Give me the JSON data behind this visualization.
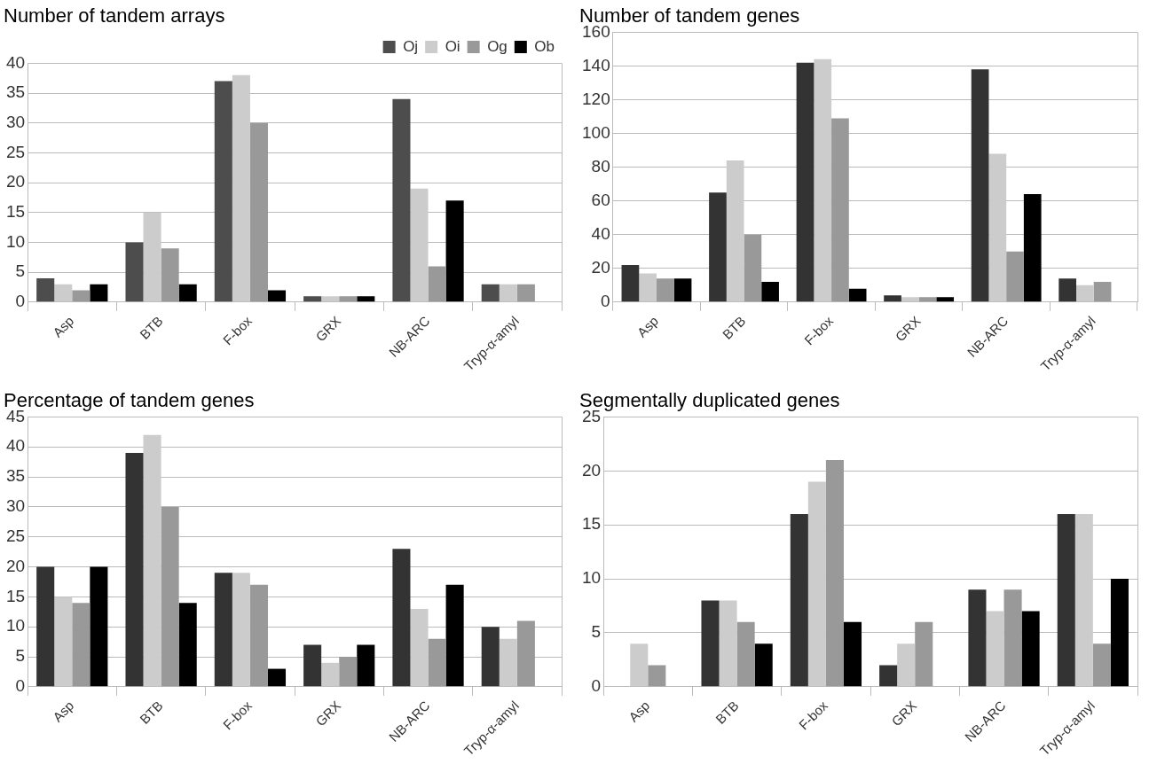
{
  "chart_data": [
    {
      "type": "bar",
      "title": "Number of tandem arrays",
      "categories": [
        "Asp",
        "BTB",
        "F-box",
        "GRX",
        "NB-ARC",
        "Tryp-α-amyl"
      ],
      "series": [
        {
          "name": "Oj",
          "color": "#4d4d4d",
          "values": [
            4,
            10,
            37,
            1,
            34,
            3
          ]
        },
        {
          "name": "Oi",
          "color": "#cccccc",
          "values": [
            3,
            15,
            38,
            1,
            19,
            3
          ]
        },
        {
          "name": "Og",
          "color": "#999999",
          "values": [
            2,
            9,
            30,
            1,
            6,
            3
          ]
        },
        {
          "name": "Ob",
          "color": "#000000",
          "values": [
            3,
            3,
            2,
            1,
            17,
            0
          ]
        }
      ],
      "ylim": [
        0,
        40
      ],
      "yticks": [
        0,
        5,
        10,
        15,
        20,
        25,
        30,
        35,
        40
      ],
      "grid": "y",
      "legend": "top right"
    },
    {
      "type": "bar",
      "title": "Number of tandem genes",
      "categories": [
        "Asp",
        "BTB",
        "F-box",
        "GRX",
        "NB-ARC",
        "Tryp-α-amyl"
      ],
      "series": [
        {
          "color": "#333333",
          "values": [
            22,
            65,
            142,
            4,
            138,
            14
          ]
        },
        {
          "color": "#cccccc",
          "values": [
            17,
            84,
            144,
            3,
            88,
            10
          ]
        },
        {
          "color": "#999999",
          "values": [
            14,
            40,
            109,
            3,
            30,
            12
          ]
        },
        {
          "color": "#000000",
          "values": [
            14,
            12,
            8,
            3,
            64,
            0
          ]
        }
      ],
      "ylim": [
        0,
        160
      ],
      "yticks": [
        0,
        20,
        40,
        60,
        80,
        100,
        120,
        140,
        160
      ],
      "grid": "y"
    },
    {
      "type": "bar",
      "title": "Percentage of tandem genes",
      "categories": [
        "Asp",
        "BTB",
        "F-box",
        "GRX",
        "NB-ARC",
        "Tryp-α-amyl"
      ],
      "series": [
        {
          "color": "#333333",
          "values": [
            20,
            39,
            19,
            7,
            23,
            10
          ]
        },
        {
          "color": "#cccccc",
          "values": [
            15,
            42,
            19,
            4,
            13,
            8
          ]
        },
        {
          "color": "#999999",
          "values": [
            14,
            30,
            17,
            5,
            8,
            11
          ]
        },
        {
          "color": "#000000",
          "values": [
            20,
            14,
            3,
            7,
            17,
            0
          ]
        }
      ],
      "ylim": [
        0,
        45
      ],
      "yticks": [
        0,
        5,
        10,
        15,
        20,
        25,
        30,
        35,
        40,
        45
      ],
      "grid": "y"
    },
    {
      "type": "bar",
      "title": "Segmentally duplicated genes",
      "categories": [
        "Asp",
        "BTB",
        "F-box",
        "GRX",
        "NB-ARC",
        "Tryp-α-amyl"
      ],
      "series": [
        {
          "color": "#333333",
          "values": [
            0,
            8,
            16,
            2,
            9,
            16
          ]
        },
        {
          "color": "#cccccc",
          "values": [
            4,
            8,
            19,
            4,
            7,
            16
          ]
        },
        {
          "color": "#999999",
          "values": [
            2,
            6,
            21,
            6,
            9,
            4
          ]
        },
        {
          "color": "#000000",
          "values": [
            0,
            4,
            6,
            0,
            7,
            10
          ]
        }
      ],
      "ylim": [
        0,
        25
      ],
      "yticks": [
        0,
        5,
        10,
        15,
        20,
        25
      ],
      "grid": "y"
    }
  ]
}
